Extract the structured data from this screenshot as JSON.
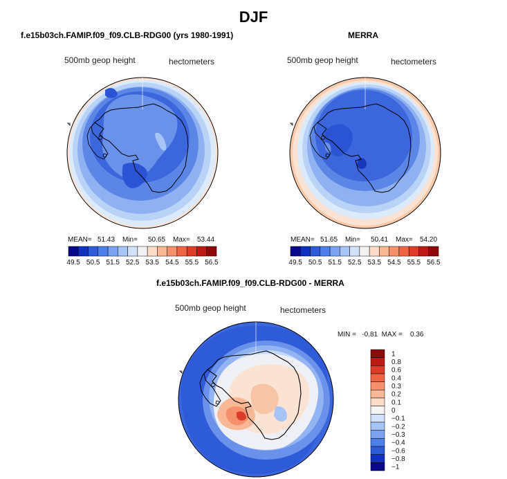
{
  "title": "DJF",
  "panels": [
    {
      "title": "f.e15b03ch.FAMIP.f09_f09.CLB-RDG00 (yrs 1980-1991)",
      "field_label": "500mb geop height",
      "units": "hectometers",
      "mean_label": "MEAN=",
      "mean": "51.43",
      "min_label": "Min=",
      "min": "50.65",
      "max_label": "Max=",
      "max": "53.44"
    },
    {
      "title": "MERRA",
      "field_label": "500mb geop height",
      "units": "hectometers",
      "mean_label": "MEAN=",
      "mean": "51.65",
      "min_label": "Min=",
      "min": "50.41",
      "max_label": "Max=",
      "max": "54.20"
    },
    {
      "title": "f.e15b03ch.FAMIP.f09_f09.CLB-RDG00 - MERRA",
      "field_label": "500mb geop height",
      "units": "hectometers",
      "range_text": "MIN =   -0.81  MAX =    0.36"
    }
  ],
  "chart_data": [
    {
      "type": "heatmap",
      "title": "f.e15b03ch.FAMIP.f09_f09.CLB-RDG00 (yrs 1980-1991)",
      "variable": "500mb geop height",
      "units": "hectometers",
      "projection": "south polar stereographic",
      "mean": 51.43,
      "min": 50.65,
      "max": 53.44,
      "contour_levels": [
        49.5,
        50,
        50.5,
        51,
        51.5,
        52,
        52.5,
        53,
        53.5,
        54,
        54.5,
        55,
        55.5,
        56,
        56.5
      ],
      "colorbar_tick_labels": [
        "49.5",
        "50.5",
        "51.5",
        "52.5",
        "53.5",
        "54.5",
        "55.5",
        "56.5"
      ],
      "colors": [
        "#08088c",
        "#1030c0",
        "#2e5bd8",
        "#4f7fe8",
        "#7aa2f0",
        "#a6c4f6",
        "#d2e2fa",
        "#f2f2f2",
        "#fadcc8",
        "#f8b896",
        "#f4906c",
        "#ee6646",
        "#dc3c28",
        "#bc1a14",
        "#8c0a0a"
      ]
    },
    {
      "type": "heatmap",
      "title": "MERRA",
      "variable": "500mb geop height",
      "units": "hectometers",
      "projection": "south polar stereographic",
      "mean": 51.65,
      "min": 50.41,
      "max": 54.2,
      "contour_levels": [
        49.5,
        50,
        50.5,
        51,
        51.5,
        52,
        52.5,
        53,
        53.5,
        54,
        54.5,
        55,
        55.5,
        56,
        56.5
      ],
      "colorbar_tick_labels": [
        "49.5",
        "50.5",
        "51.5",
        "52.5",
        "53.5",
        "54.5",
        "55.5",
        "56.5"
      ],
      "colors": [
        "#08088c",
        "#1030c0",
        "#2e5bd8",
        "#4f7fe8",
        "#7aa2f0",
        "#a6c4f6",
        "#d2e2fa",
        "#f2f2f2",
        "#fadcc8",
        "#f8b896",
        "#f4906c",
        "#ee6646",
        "#dc3c28",
        "#bc1a14",
        "#8c0a0a"
      ]
    },
    {
      "type": "heatmap",
      "title": "f.e15b03ch.FAMIP.f09_f09.CLB-RDG00 - MERRA",
      "variable": "500mb geop height",
      "units": "hectometers",
      "projection": "south polar stereographic",
      "min": -0.81,
      "max": 0.36,
      "contour_levels": [
        -1,
        -0.8,
        -0.6,
        -0.4,
        -0.3,
        -0.2,
        -0.1,
        0,
        0.1,
        0.2,
        0.3,
        0.4,
        0.6,
        0.8,
        1
      ],
      "colorbar_tick_labels": [
        "1",
        "0.8",
        "0.6",
        "0.4",
        "0.3",
        "0.2",
        "0.1",
        "0",
        "−0.1",
        "−0.2",
        "−0.3",
        "−0.4",
        "−0.6",
        "−0.8",
        "−1"
      ],
      "colors": [
        "#8c0a0a",
        "#bc1a14",
        "#dc3c28",
        "#ee6646",
        "#f4906c",
        "#f8b896",
        "#fadcc8",
        "#f4f4f4",
        "#d2e2fa",
        "#a6c4f6",
        "#7aa2f0",
        "#4f7fe8",
        "#2e5bd8",
        "#1030c0",
        "#08088c"
      ]
    }
  ]
}
